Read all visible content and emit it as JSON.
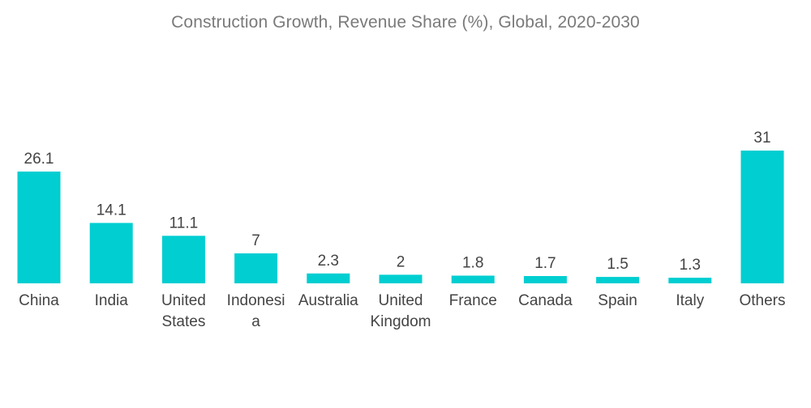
{
  "chart_data": {
    "type": "bar",
    "title": "Construction Growth, Revenue Share (%),  Global, 2020-2030",
    "categories": [
      "China",
      "India",
      "United States",
      "Indonesia",
      "Australia",
      "United Kingdom",
      "France",
      "Canada",
      "Spain",
      "Italy",
      "Others"
    ],
    "category_lines": [
      [
        "China"
      ],
      [
        "India"
      ],
      [
        "United",
        "States"
      ],
      [
        "Indonesi",
        "a"
      ],
      [
        "Australia"
      ],
      [
        "United",
        "Kingdom"
      ],
      [
        "France"
      ],
      [
        "Canada"
      ],
      [
        "Spain"
      ],
      [
        "Italy"
      ],
      [
        "Others"
      ]
    ],
    "values": [
      26.1,
      14.1,
      11.1,
      7,
      2.3,
      2,
      1.8,
      1.7,
      1.5,
      1.3,
      31
    ],
    "value_labels": [
      "26.1",
      "14.1",
      "11.1",
      "7",
      "2.3",
      "2",
      "1.8",
      "1.7",
      "1.5",
      "1.3",
      "31"
    ],
    "xlabel": "",
    "ylabel": "",
    "ylim": [
      0,
      31
    ],
    "grid": false,
    "legend": "none",
    "bar_color": "#00CED1"
  }
}
